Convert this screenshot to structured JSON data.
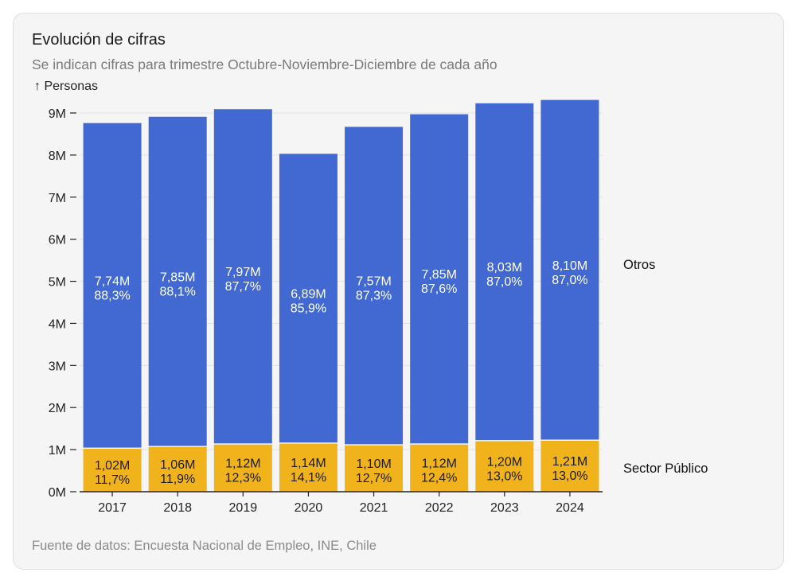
{
  "header": {
    "title": "Evolución de cifras",
    "subtitle": "Se indican cifras para trimestre Octubre-Noviembre-Diciembre de cada año"
  },
  "footer": {
    "source": "Fuente de datos: Encuesta Nacional de Empleo, INE, Chile"
  },
  "colors": {
    "otros": "#4169d1",
    "sector_publico": "#f0b31b",
    "axis": "#222222",
    "grid": "#e2e2e2"
  },
  "chart_data": {
    "type": "bar",
    "stacked": true,
    "title": "Evolución de cifras",
    "subtitle": "Se indican cifras para trimestre Octubre-Noviembre-Diciembre de cada año",
    "ylabel": "↑ Personas",
    "xlabel": "",
    "ylim": [
      0,
      9000000
    ],
    "yticks": [
      {
        "value": 0,
        "label": "0M"
      },
      {
        "value": 1000000,
        "label": "1M"
      },
      {
        "value": 2000000,
        "label": "2M"
      },
      {
        "value": 3000000,
        "label": "3M"
      },
      {
        "value": 4000000,
        "label": "4M"
      },
      {
        "value": 5000000,
        "label": "5M"
      },
      {
        "value": 6000000,
        "label": "6M"
      },
      {
        "value": 7000000,
        "label": "7M"
      },
      {
        "value": 8000000,
        "label": "8M"
      },
      {
        "value": 9000000,
        "label": "9M"
      }
    ],
    "grid": true,
    "categories": [
      "2017",
      "2018",
      "2019",
      "2020",
      "2021",
      "2022",
      "2023",
      "2024"
    ],
    "series": [
      {
        "name": "Sector Público",
        "color_key": "sector_publico",
        "values": [
          1020000,
          1060000,
          1120000,
          1140000,
          1100000,
          1120000,
          1200000,
          1210000
        ],
        "value_labels": [
          "1,02M",
          "1,06M",
          "1,12M",
          "1,14M",
          "1,10M",
          "1,12M",
          "1,20M",
          "1,21M"
        ],
        "pct_labels": [
          "11,7%",
          "11,9%",
          "12,3%",
          "14,1%",
          "12,7%",
          "12,4%",
          "13,0%",
          "13,0%"
        ]
      },
      {
        "name": "Otros",
        "color_key": "otros",
        "values": [
          7740000,
          7850000,
          7970000,
          6890000,
          7570000,
          7850000,
          8030000,
          8100000
        ],
        "value_labels": [
          "7,74M",
          "7,85M",
          "7,97M",
          "6,89M",
          "7,57M",
          "7,85M",
          "8,03M",
          "8,10M"
        ],
        "pct_labels": [
          "88,3%",
          "88,1%",
          "87,7%",
          "85,9%",
          "87,3%",
          "87,6%",
          "87,0%",
          "87,0%"
        ]
      }
    ],
    "legend_placement": "right, labels aligned with each series"
  }
}
